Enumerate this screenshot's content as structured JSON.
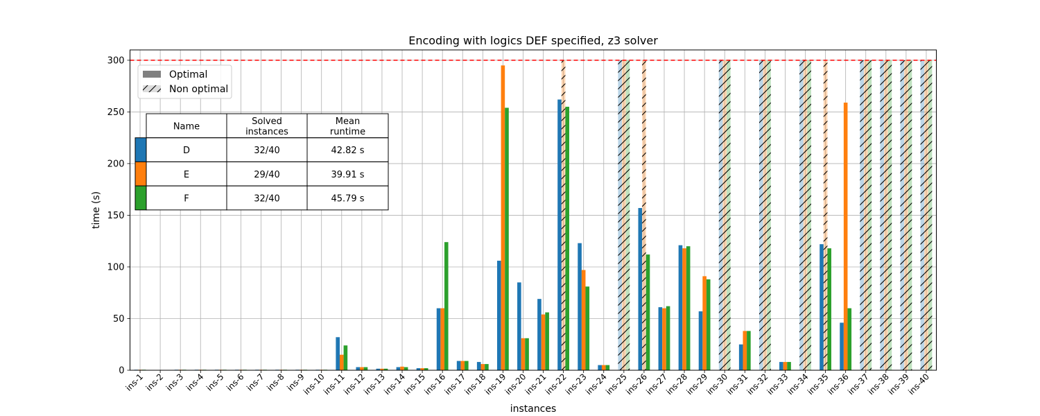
{
  "chart_data": {
    "type": "bar",
    "title": "Encoding with logics DEF specified, z3 solver",
    "xlabel": "instances",
    "ylabel": "time (s)",
    "ylim": [
      0,
      310
    ],
    "yticks": [
      0,
      50,
      100,
      150,
      200,
      250,
      300
    ],
    "timeout_line": 300,
    "grid": true,
    "categories": [
      "ins-1",
      "ins-2",
      "ins-3",
      "ins-4",
      "ins-5",
      "ins-6",
      "ins-7",
      "ins-8",
      "ins-9",
      "ins-10",
      "ins-11",
      "ins-12",
      "ins-13",
      "ins-14",
      "ins-15",
      "ins-16",
      "ins-17",
      "ins-18",
      "ins-19",
      "ins-20",
      "ins-21",
      "ins-22",
      "ins-23",
      "ins-24",
      "ins-25",
      "ins-26",
      "ins-27",
      "ins-28",
      "ins-29",
      "ins-30",
      "ins-31",
      "ins-32",
      "ins-33",
      "ins-34",
      "ins-35",
      "ins-36",
      "ins-37",
      "ins-38",
      "ins-39",
      "ins-40"
    ],
    "series": [
      {
        "name": "D",
        "color": "#1f77b4",
        "values": [
          0.5,
          0.2,
          0.5,
          0.5,
          0.5,
          0.5,
          0.5,
          0.5,
          0.5,
          0.5,
          32,
          3,
          1.5,
          3,
          2,
          60,
          9,
          8,
          106,
          85,
          69,
          262,
          123,
          5,
          300,
          157,
          61,
          121,
          57,
          300,
          25,
          300,
          8,
          300,
          122,
          46,
          300,
          300,
          300,
          300
        ],
        "optimal": [
          true,
          true,
          true,
          true,
          true,
          true,
          true,
          true,
          true,
          true,
          true,
          true,
          true,
          true,
          true,
          true,
          true,
          true,
          true,
          true,
          true,
          true,
          true,
          true,
          false,
          true,
          true,
          true,
          true,
          false,
          true,
          false,
          true,
          false,
          true,
          true,
          false,
          false,
          false,
          false
        ]
      },
      {
        "name": "E",
        "color": "#ff7f0e",
        "values": [
          0.5,
          0.2,
          0.5,
          0.5,
          0.5,
          0.5,
          0.5,
          0.5,
          0.5,
          0.5,
          15,
          3,
          1.5,
          3.5,
          2,
          60,
          9,
          6,
          295,
          31,
          54,
          300,
          97,
          5,
          300,
          300,
          60,
          118,
          91,
          300,
          38,
          300,
          8,
          300,
          300,
          259,
          300,
          300,
          300,
          300
        ],
        "optimal": [
          true,
          true,
          true,
          true,
          true,
          true,
          true,
          true,
          true,
          true,
          true,
          true,
          true,
          true,
          true,
          true,
          true,
          true,
          true,
          true,
          true,
          false,
          true,
          true,
          false,
          false,
          true,
          true,
          true,
          false,
          true,
          false,
          true,
          false,
          false,
          true,
          false,
          false,
          false,
          false
        ]
      },
      {
        "name": "F",
        "color": "#2ca02c",
        "values": [
          0.5,
          0.2,
          0.5,
          0.5,
          0.5,
          0.5,
          0.5,
          0.5,
          0.5,
          0.5,
          24,
          3,
          1.5,
          3,
          2,
          124,
          9,
          6,
          254,
          31,
          56,
          255,
          81,
          5,
          300,
          112,
          62,
          120,
          88,
          300,
          38,
          300,
          8,
          300,
          118,
          60,
          300,
          300,
          300,
          300
        ],
        "optimal": [
          true,
          true,
          true,
          true,
          true,
          true,
          true,
          true,
          true,
          true,
          true,
          true,
          true,
          true,
          true,
          true,
          true,
          true,
          true,
          true,
          true,
          true,
          true,
          true,
          false,
          true,
          true,
          true,
          true,
          false,
          true,
          false,
          true,
          false,
          true,
          true,
          false,
          false,
          false,
          false
        ]
      }
    ],
    "legend": {
      "placement": "top-left",
      "entries": [
        "Optimal",
        "Non optimal"
      ]
    },
    "table": {
      "headers": [
        "Name",
        "Solved\ninstances",
        "Mean\nruntime"
      ],
      "rows": [
        {
          "name": "D",
          "solved": "32/40",
          "mean": "42.82 s"
        },
        {
          "name": "E",
          "solved": "29/40",
          "mean": "39.91 s"
        },
        {
          "name": "F",
          "solved": "32/40",
          "mean": "45.79 s"
        }
      ]
    }
  }
}
